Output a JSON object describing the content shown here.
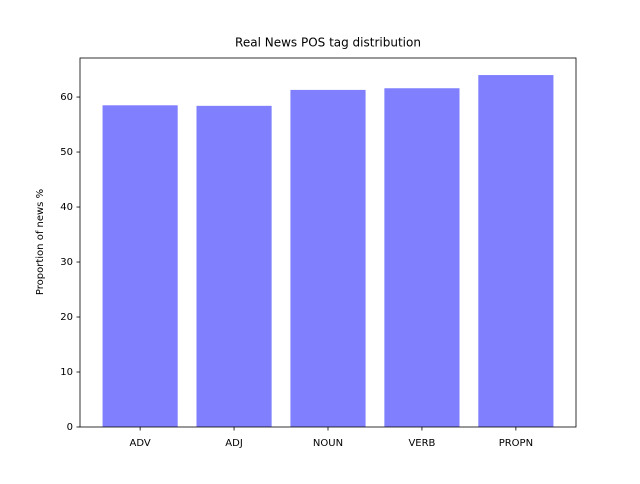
{
  "chart_data": {
    "type": "bar",
    "title": "Real News POS tag distribution",
    "ylabel": "Proportion of news %",
    "categories": [
      "ADV",
      "ADJ",
      "NOUN",
      "VERB",
      "PROPN"
    ],
    "values": [
      58.5,
      58.4,
      61.3,
      61.6,
      64.0
    ],
    "color": "#8080ff",
    "ylim": [
      0,
      67.1
    ],
    "yticks": [
      0,
      10,
      20,
      30,
      40,
      50,
      60
    ],
    "grid": false
  }
}
